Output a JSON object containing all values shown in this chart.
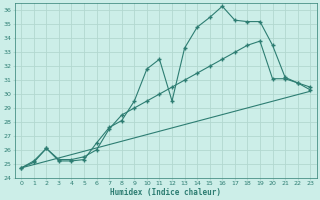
{
  "xlabel": "Humidex (Indice chaleur)",
  "xlim": [
    -0.5,
    23.5
  ],
  "ylim": [
    24,
    36.5
  ],
  "yticks": [
    24,
    25,
    26,
    27,
    28,
    29,
    30,
    31,
    32,
    33,
    34,
    35,
    36
  ],
  "xticks": [
    0,
    1,
    2,
    3,
    4,
    5,
    6,
    7,
    8,
    9,
    10,
    11,
    12,
    13,
    14,
    15,
    16,
    17,
    18,
    19,
    20,
    21,
    22,
    23
  ],
  "bg_color": "#cceee8",
  "line_color": "#2d7d72",
  "grid_color": "#b2d8d0",
  "line1_x": [
    0,
    1,
    2,
    3,
    4,
    5,
    6,
    7,
    8,
    9,
    10,
    11,
    12,
    13,
    14,
    15,
    16,
    17,
    18,
    19,
    20,
    21,
    22,
    23
  ],
  "line1_y": [
    24.7,
    25.2,
    26.1,
    25.2,
    25.2,
    25.3,
    26.5,
    27.6,
    28.1,
    29.5,
    31.8,
    32.5,
    29.5,
    33.3,
    34.8,
    35.5,
    36.3,
    35.3,
    35.2,
    35.2,
    33.5,
    31.2,
    30.8,
    30.3
  ],
  "line2_x": [
    0,
    1,
    2,
    3,
    4,
    5,
    6,
    7,
    8,
    9,
    10,
    11,
    12,
    13,
    14,
    15,
    16,
    17,
    18,
    19,
    20,
    21,
    22,
    23
  ],
  "line2_y": [
    24.7,
    25.1,
    26.1,
    25.3,
    25.3,
    25.5,
    26.0,
    27.5,
    28.5,
    29.0,
    29.5,
    30.0,
    30.5,
    31.0,
    31.5,
    32.0,
    32.5,
    33.0,
    33.5,
    33.8,
    31.1,
    31.1,
    30.8,
    30.5
  ],
  "line3_x": [
    0,
    23
  ],
  "line3_y": [
    24.7,
    30.2
  ]
}
